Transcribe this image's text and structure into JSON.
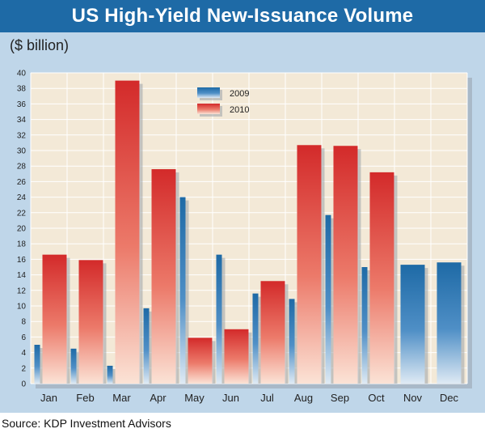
{
  "title": "US High-Yield New-Issuance Volume",
  "unit_label": "($ billion)",
  "source": "Source: KDP Investment Advisors",
  "colors": {
    "frame": "#bfd6e9",
    "plot_bg": "#f3e9d7",
    "grid": "#ffffff",
    "title_bar": "#1e6aa6",
    "series_2009": "#1e6aa6",
    "series_2010": "#d32a2a"
  },
  "chart_data": {
    "type": "bar",
    "categories": [
      "Jan",
      "Feb",
      "Mar",
      "Apr",
      "May",
      "Jun",
      "Jul",
      "Aug",
      "Sep",
      "Oct",
      "Nov",
      "Dec"
    ],
    "series": [
      {
        "name": "2009",
        "values": [
          5.0,
          4.5,
          2.3,
          9.7,
          24.0,
          16.6,
          11.6,
          10.9,
          21.7,
          15.0,
          15.3,
          15.6
        ]
      },
      {
        "name": "2010",
        "values": [
          16.6,
          15.9,
          39.0,
          27.6,
          5.9,
          7.0,
          13.2,
          30.7,
          30.6,
          27.2,
          null,
          null
        ]
      }
    ],
    "ylim": [
      0,
      40
    ],
    "yticks": [
      0,
      2,
      4,
      6,
      8,
      10,
      12,
      14,
      16,
      18,
      20,
      22,
      24,
      26,
      28,
      30,
      32,
      34,
      36,
      38,
      40
    ],
    "grid": true,
    "legend_position": "top-center"
  }
}
